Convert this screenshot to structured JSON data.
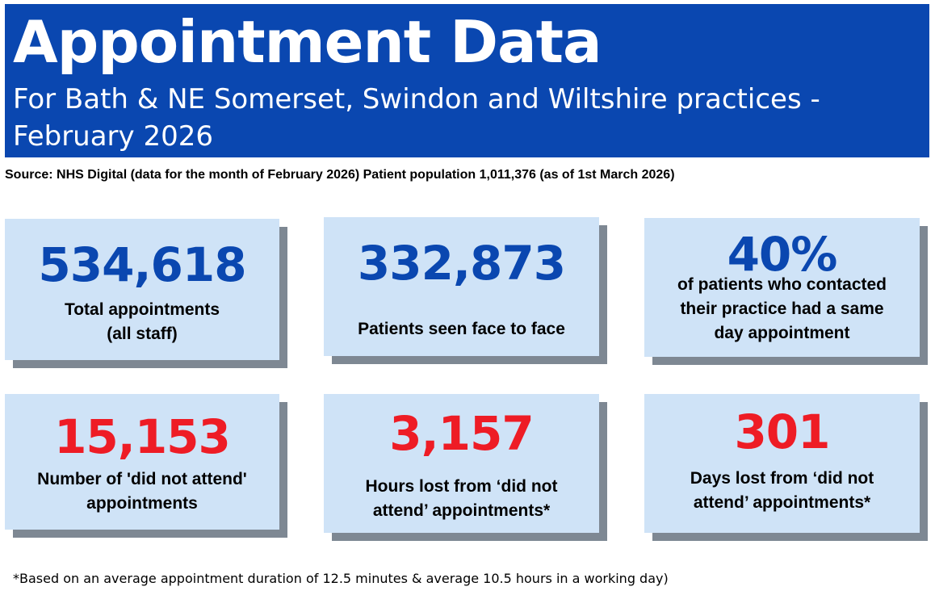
{
  "header": {
    "title": "Appointment Data",
    "subtitle": "For Bath & NE Somerset, Swindon and Wiltshire practices - February 2026"
  },
  "source": "Source: NHS Digital (data for the month of February 2026) Patient population  1,011,376 (as of 1st March 2026)",
  "colors": {
    "banner": "#0a47b0",
    "stat_blue": "#0a47b0",
    "stat_red": "#ee1c25",
    "card_background": "#cfe3f7",
    "card_shadow": "#7e8893"
  },
  "cards": [
    {
      "value": "534,618",
      "label_line1": "Total appointments",
      "label_line2": "(all staff)"
    },
    {
      "value": "332,873",
      "label_line1": "Patients seen face to face"
    },
    {
      "value": "40%",
      "label_line1": "of patients who contacted",
      "label_line2": "their practice had a same",
      "label_line3": "day appointment"
    },
    {
      "value": "15,153",
      "label_line1": "Number of 'did not attend'",
      "label_line2": "appointments"
    },
    {
      "value": "3,157",
      "label_line1": "Hours lost from ‘did not",
      "label_line2": "attend’ appointments*"
    },
    {
      "value": "301",
      "label_line1": "Days lost from ‘did not",
      "label_line2": "attend’ appointments*"
    }
  ],
  "footnote": "*Based on an average appointment duration of 12.5 minutes & average 10.5 hours in a working day)"
}
